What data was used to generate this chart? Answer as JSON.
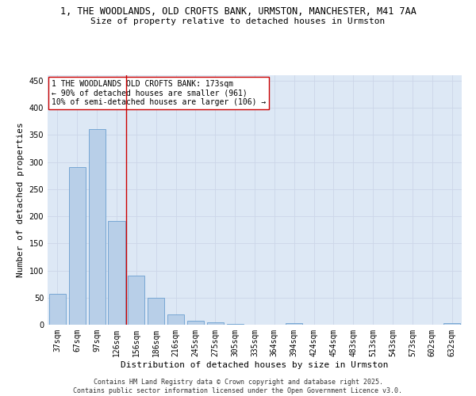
{
  "title_line1": "1, THE WOODLANDS, OLD CROFTS BANK, URMSTON, MANCHESTER, M41 7AA",
  "title_line2": "Size of property relative to detached houses in Urmston",
  "xlabel": "Distribution of detached houses by size in Urmston",
  "ylabel": "Number of detached properties",
  "categories": [
    "37sqm",
    "67sqm",
    "97sqm",
    "126sqm",
    "156sqm",
    "186sqm",
    "216sqm",
    "245sqm",
    "275sqm",
    "305sqm",
    "335sqm",
    "364sqm",
    "394sqm",
    "424sqm",
    "454sqm",
    "483sqm",
    "513sqm",
    "543sqm",
    "573sqm",
    "602sqm",
    "632sqm"
  ],
  "values": [
    57,
    290,
    360,
    192,
    91,
    49,
    19,
    8,
    4,
    1,
    0,
    0,
    3,
    0,
    0,
    0,
    0,
    0,
    0,
    0,
    3
  ],
  "bar_color": "#b8cfe8",
  "bar_edge_color": "#6a9fd0",
  "vline_color": "#cc0000",
  "annotation_text": "1 THE WOODLANDS OLD CROFTS BANK: 173sqm\n← 90% of detached houses are smaller (961)\n10% of semi-detached houses are larger (106) →",
  "annotation_box_color": "#ffffff",
  "annotation_box_edge": "#cc0000",
  "ylim": [
    0,
    460
  ],
  "yticks": [
    0,
    50,
    100,
    150,
    200,
    250,
    300,
    350,
    400,
    450
  ],
  "grid_color": "#ccd6e8",
  "background_color": "#dde8f5",
  "footer_text": "Contains HM Land Registry data © Crown copyright and database right 2025.\nContains public sector information licensed under the Open Government Licence v3.0.",
  "title_fontsize": 8.5,
  "subtitle_fontsize": 8.0,
  "axis_label_fontsize": 8.0,
  "tick_fontsize": 7.0,
  "annotation_fontsize": 7.0,
  "footer_fontsize": 6.0
}
